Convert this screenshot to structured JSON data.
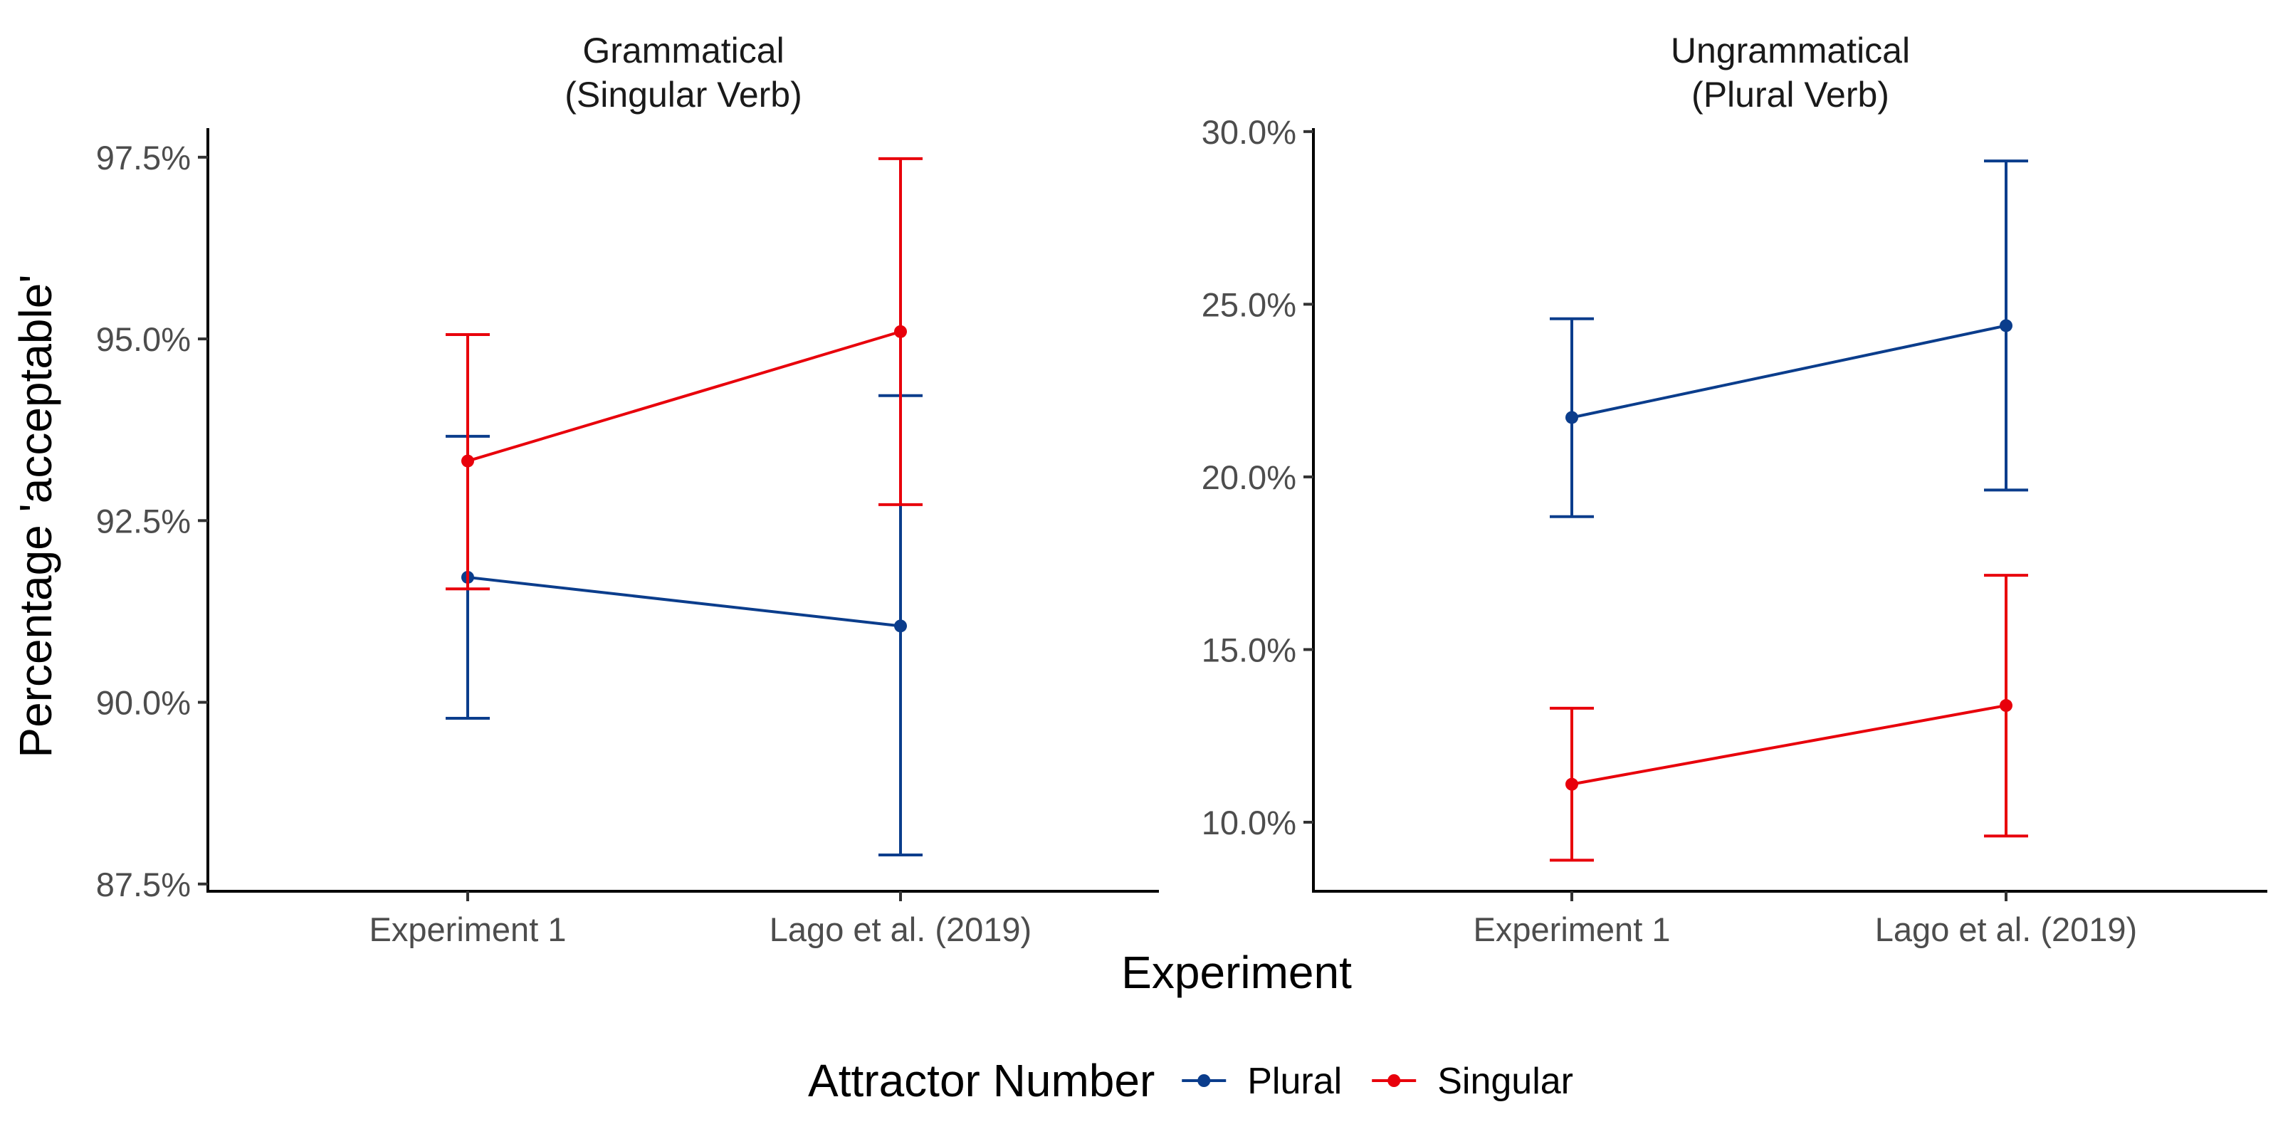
{
  "chart_data": {
    "type": "line",
    "xlabel": "Experiment",
    "ylabel": "Percentage 'acceptable'",
    "categories": [
      "Experiment 1",
      "Lago et al. (2019)"
    ],
    "grid": false,
    "legend": {
      "title": "Attractor Number",
      "placement": "bottom",
      "entries": [
        {
          "name": "Plural",
          "color": "#0b3d8c"
        },
        {
          "name": "Singular",
          "color": "#e8000b"
        }
      ]
    },
    "panels": [
      {
        "title_line1": "Grammatical",
        "title_line2": "(Singular Verb)",
        "ylim": [
          87.4,
          97.9
        ],
        "yticks": [
          87.5,
          90.0,
          92.5,
          95.0,
          97.5
        ],
        "ytick_labels": [
          "87.5%",
          "90.0%",
          "92.5%",
          "95.0%",
          "97.5%"
        ],
        "series": [
          {
            "name": "Plural",
            "color": "#0b3d8c",
            "values": [
              91.72,
              91.05
            ],
            "lower": [
              89.78,
              87.9
            ],
            "upper": [
              93.66,
              94.22
            ]
          },
          {
            "name": "Singular",
            "color": "#e8000b",
            "values": [
              93.32,
              95.1
            ],
            "lower": [
              91.56,
              92.72
            ],
            "upper": [
              95.06,
              97.48
            ]
          }
        ]
      },
      {
        "title_line1": "Ungrammatical",
        "title_line2": "(Plural Verb)",
        "ylim": [
          8.0,
          30.1
        ],
        "yticks": [
          10.0,
          15.0,
          20.0,
          25.0,
          30.0
        ],
        "ytick_labels": [
          "10.0%",
          "15.0%",
          "20.0%",
          "25.0%",
          "30.0%"
        ],
        "series": [
          {
            "name": "Plural",
            "color": "#0b3d8c",
            "values": [
              21.72,
              24.38
            ],
            "lower": [
              18.85,
              19.62
            ],
            "upper": [
              24.58,
              29.15
            ]
          },
          {
            "name": "Singular",
            "color": "#e8000b",
            "values": [
              11.1,
              13.38
            ],
            "lower": [
              8.9,
              9.6
            ],
            "upper": [
              13.3,
              17.15
            ]
          }
        ]
      }
    ]
  }
}
